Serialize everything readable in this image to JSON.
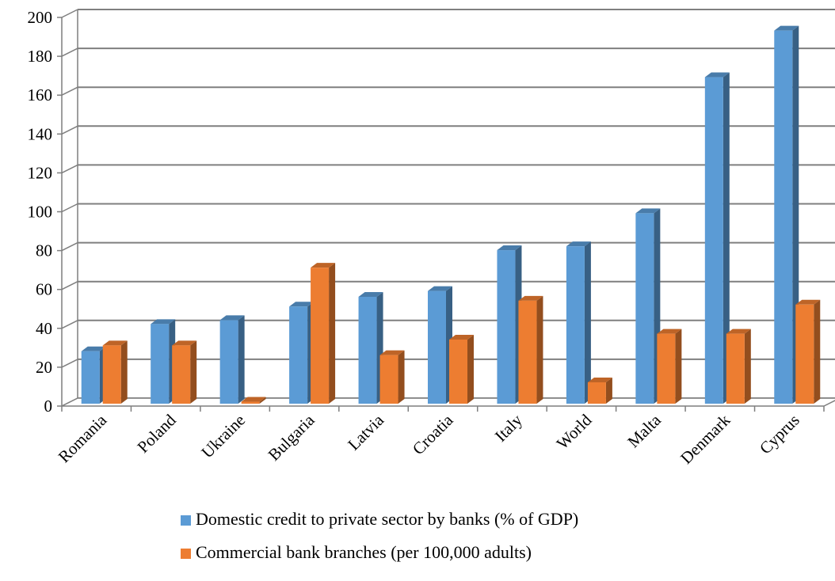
{
  "chart_data": {
    "type": "bar",
    "categories": [
      "Romania",
      "Poland",
      "Ukraine",
      "Bulgaria",
      "Latvia",
      "Croatia",
      "Italy",
      "World",
      "Malta",
      "Denmark",
      "Cyprus"
    ],
    "series": [
      {
        "name": "Domestic credit to private sector by banks (% of GDP)",
        "color": "#5b9bd5",
        "values": [
          27,
          41,
          43,
          50,
          55,
          58,
          79,
          81,
          98,
          168,
          192
        ]
      },
      {
        "name": "Commercial bank branches (per 100,000 adults)",
        "color": "#ed7d31",
        "values": [
          30,
          30,
          1,
          70,
          25,
          33,
          53,
          11,
          36,
          36,
          51
        ]
      }
    ],
    "y_ticks": [
      "0",
      "20",
      "40",
      "60",
      "80",
      "100",
      "120",
      "140",
      "160",
      "180",
      "200"
    ],
    "ylim": [
      0,
      200
    ],
    "grid": true,
    "legend_position": "bottom"
  }
}
